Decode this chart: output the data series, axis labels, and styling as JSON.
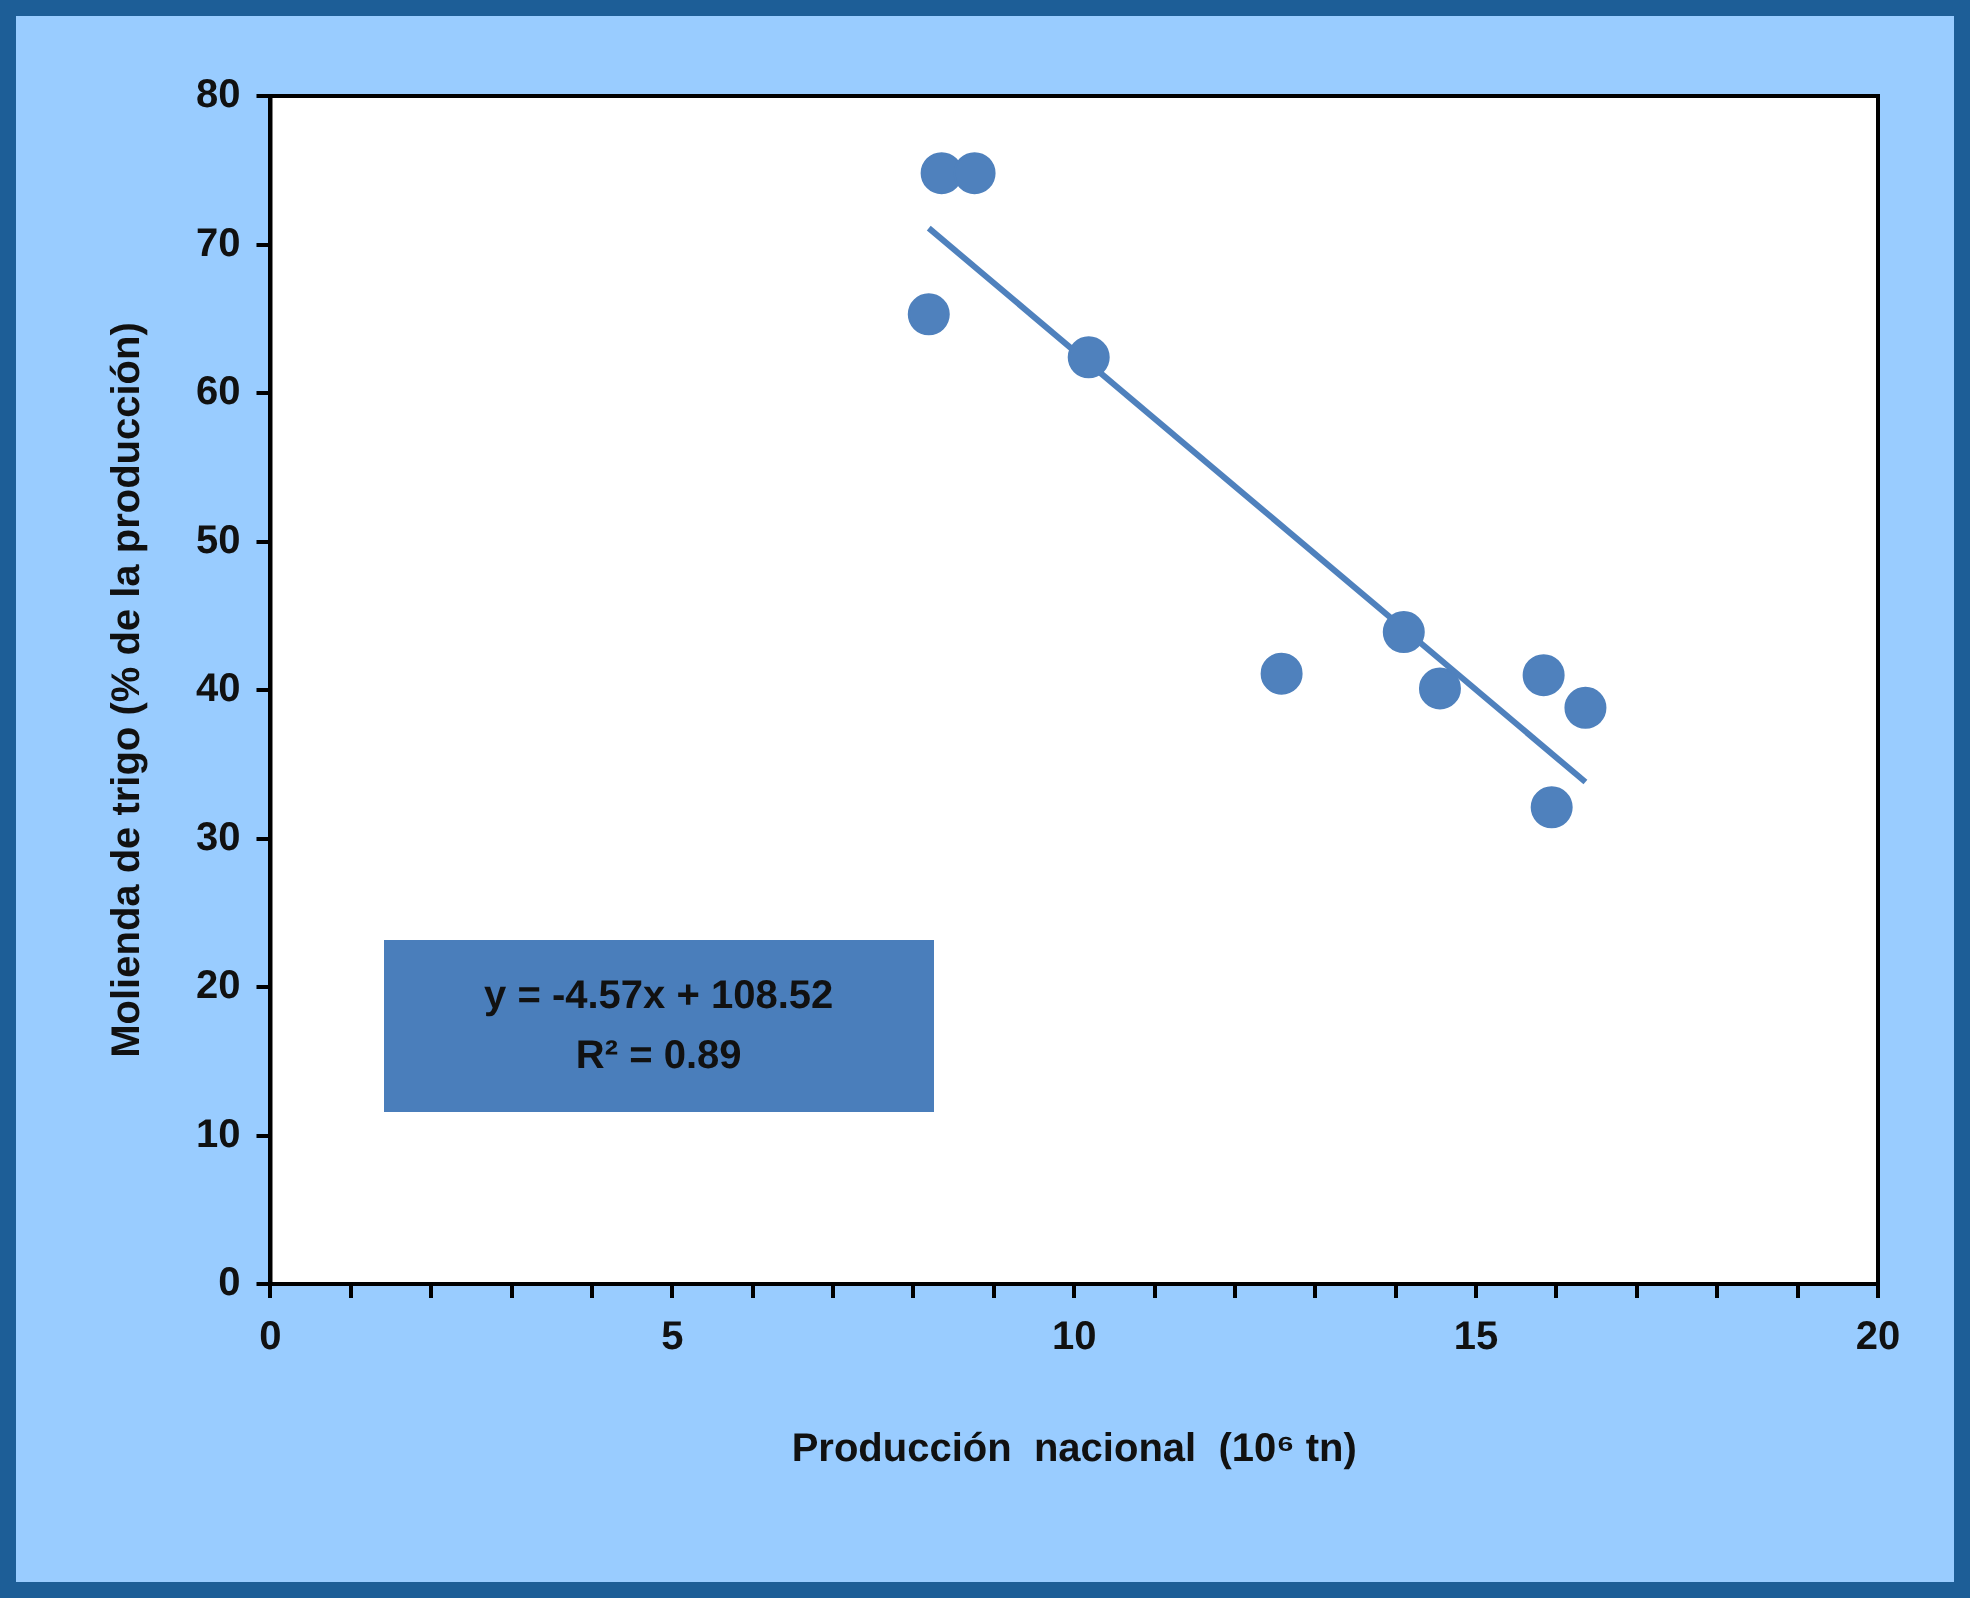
{
  "chart_data": {
    "type": "scatter",
    "xlabel": "Producción  nacional  (10⁶ tn)",
    "ylabel": "Molienda de trigo (% de la producción)",
    "series": [
      {
        "marker": "circle",
        "color": "#4f81bd",
        "x": [
          8.35,
          8.76,
          8.19,
          10.18,
          12.58,
          14.1,
          14.55,
          15.84,
          15.94,
          16.36
        ],
        "values": [
          74.8,
          74.8,
          65.3,
          62.4,
          41.1,
          43.9,
          40.1,
          41.0,
          32.1,
          38.8
        ]
      },
      {
        "type": "line",
        "line_style": "solid",
        "color": "#4f81bd",
        "x": [
          8.19,
          16.36
        ],
        "values": [
          71.1,
          33.8
        ]
      }
    ],
    "xlim": [
      0,
      20
    ],
    "xticks": [
      0,
      {
        "value": 1,
        "label": null
      },
      {
        "value": 2,
        "label": null
      },
      {
        "value": 3,
        "label": null
      },
      {
        "value": 4,
        "label": null
      },
      5,
      {
        "value": 6,
        "label": null
      },
      {
        "value": 7,
        "label": null
      },
      {
        "value": 8,
        "label": null
      },
      {
        "value": 9,
        "label": null
      },
      10,
      {
        "value": 11,
        "label": null
      },
      {
        "value": 12,
        "label": null
      },
      {
        "value": 13,
        "label": null
      },
      {
        "value": 14,
        "label": null
      },
      15,
      {
        "value": 16,
        "label": null
      },
      {
        "value": 17,
        "label": null
      },
      {
        "value": 18,
        "label": null
      },
      {
        "value": 19,
        "label": null
      },
      20
    ],
    "ylim": [
      0,
      80
    ],
    "yticks": [
      0,
      10,
      20,
      30,
      40,
      50,
      60,
      70,
      80
    ],
    "annotations": [
      "y = -4.57x + 108.52",
      "R² = 0.89"
    ],
    "grid": false,
    "legend": false
  }
}
